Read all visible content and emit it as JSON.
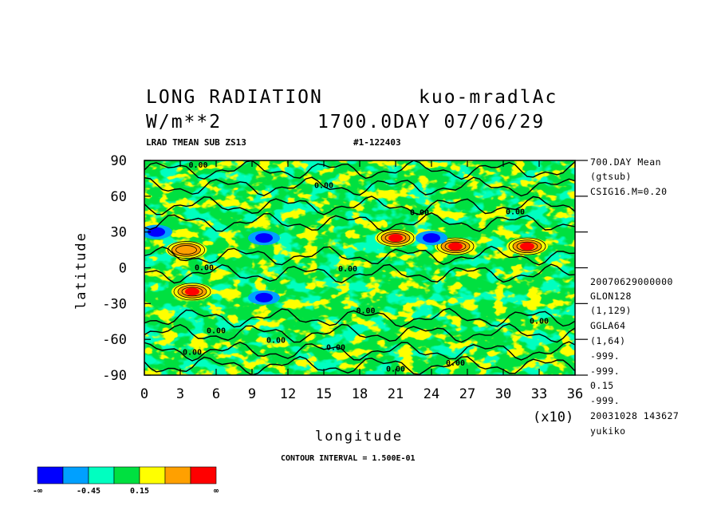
{
  "header": {
    "title": "LONG RADIATION",
    "experiment": "kuo-mradlAc",
    "units": "W/m**2",
    "time": "1700.0DAY 07/06/29",
    "sub_left": "LRAD TMEAN SUB ZS13",
    "sub_right": "#1-122403"
  },
  "side_info": {
    "top": [
      "700.DAY Mean",
      "(gtsub)",
      "CSIG16.M=0.20"
    ],
    "bottom": [
      "20070629000000",
      "GLON128",
      "(1,129)",
      "GGLA64",
      "(1,64)",
      "-999.",
      "-999.",
      "0.15",
      "-999.",
      "20031028 143627",
      "yukiko"
    ]
  },
  "footer": {
    "contour_interval": "CONTOUR INTERVAL = 1.500E-01",
    "x_multiplier": "(x10)"
  },
  "colorbar": {
    "colors": [
      "#0000ff",
      "#00a0ff",
      "#00ffc0",
      "#00e040",
      "#ffff00",
      "#ffa000",
      "#ff0000"
    ],
    "labels": [
      "-∞",
      "-0.45",
      "0.15",
      "∞"
    ]
  },
  "chart_data": {
    "type": "heatmap",
    "title": "LONG RADIATION",
    "xlabel": "longitude",
    "ylabel": "latitude",
    "xlim": [
      0,
      36
    ],
    "ylim": [
      -90,
      90
    ],
    "x_ticks": [
      "0",
      "3",
      "6",
      "9",
      "12",
      "15",
      "18",
      "21",
      "24",
      "27",
      "30",
      "33",
      "36"
    ],
    "y_ticks": [
      "90",
      "60",
      "30",
      "0",
      "-30",
      "-60",
      "-90"
    ],
    "contour_labels": [
      "0.00"
    ],
    "color_levels": [
      "-∞",
      "-0.45",
      "0.15",
      "∞"
    ],
    "notable_features": [
      {
        "lon": 4,
        "lat": -20,
        "level": "red"
      },
      {
        "lon": 21,
        "lat": 25,
        "level": "red"
      },
      {
        "lon": 26,
        "lat": 18,
        "level": "red"
      },
      {
        "lon": 32,
        "lat": 18,
        "level": "red"
      },
      {
        "lon": 3.5,
        "lat": 15,
        "level": "orange"
      },
      {
        "lon": 10,
        "lat": 25,
        "level": "blue"
      },
      {
        "lon": 24,
        "lat": 25,
        "level": "blue"
      },
      {
        "lon": 10,
        "lat": -25,
        "level": "blue"
      },
      {
        "lon": 1,
        "lat": 30,
        "level": "blue"
      }
    ]
  }
}
